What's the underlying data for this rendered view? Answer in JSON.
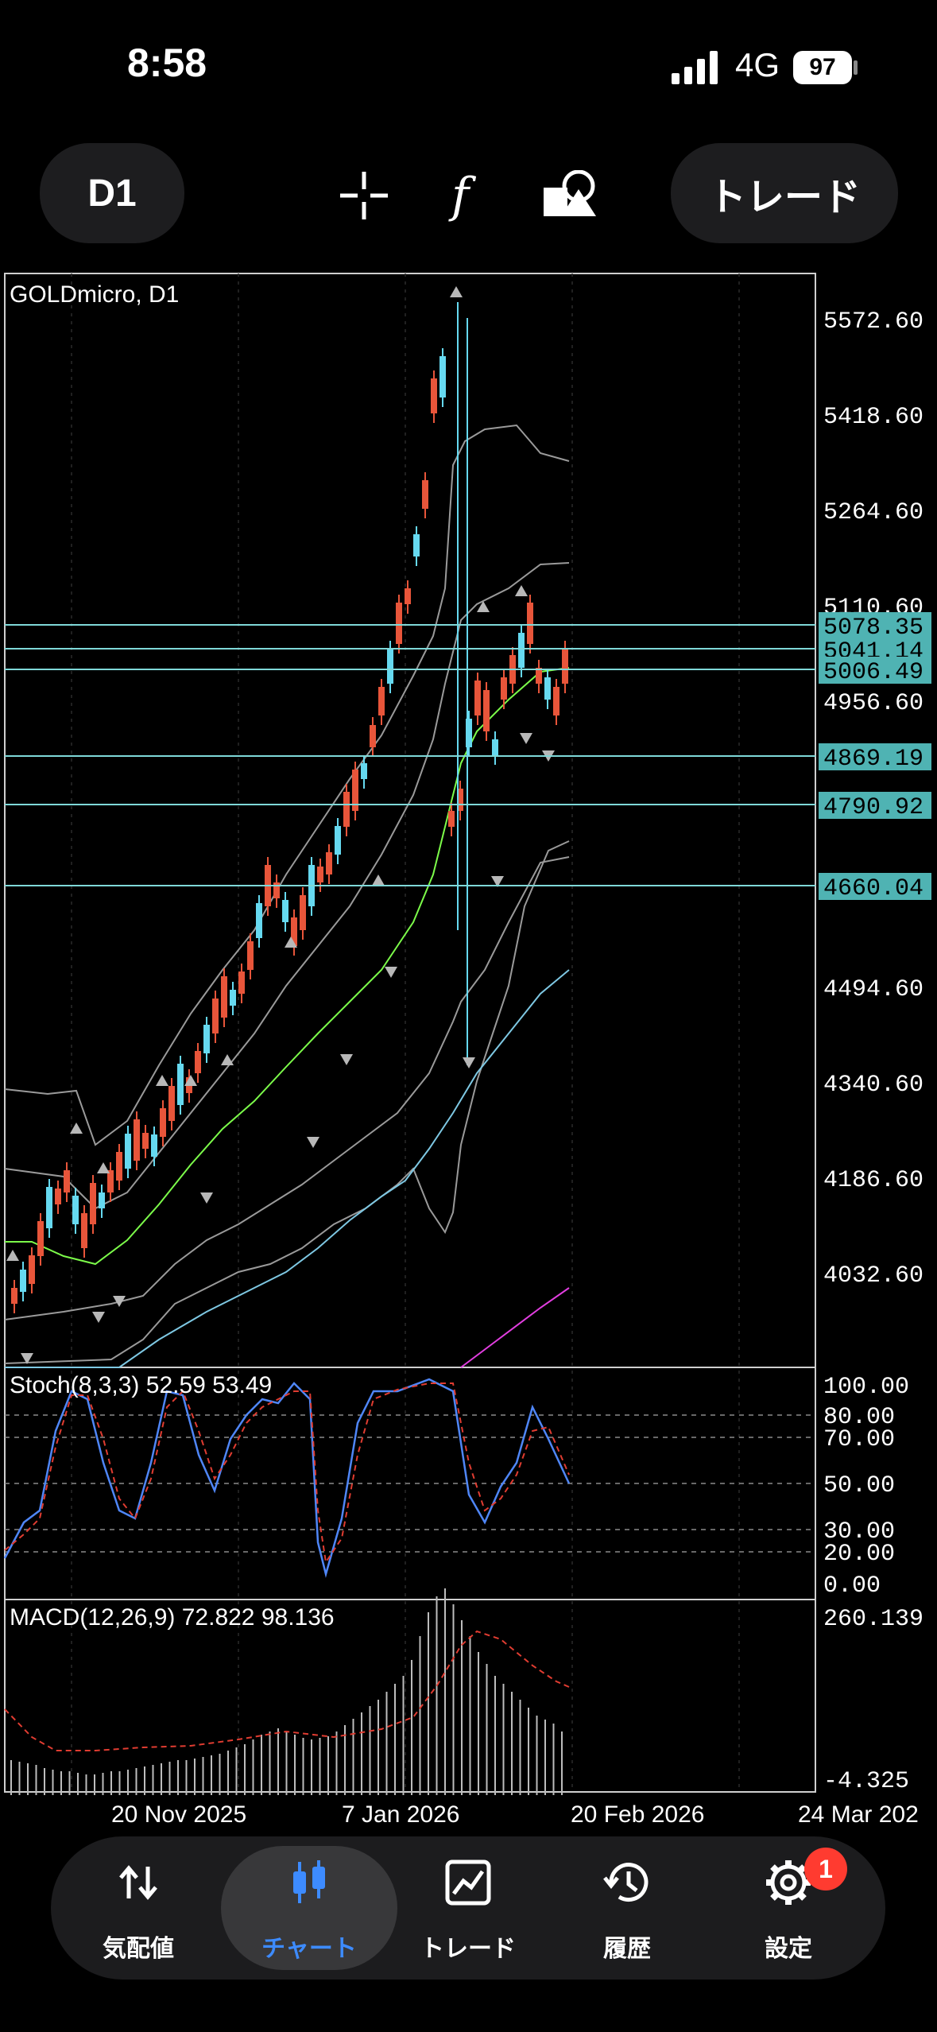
{
  "status": {
    "time": "8:58",
    "network": "4G",
    "battery": "97"
  },
  "toolbar": {
    "timeframe": "D1",
    "trade_button": "トレード"
  },
  "chart": {
    "symbol_label": "GOLDmicro, D1",
    "price_axis": [
      "5572.60",
      "5418.60",
      "5264.60",
      "5110.60",
      "4956.60",
      "4494.60",
      "4340.60",
      "4186.60",
      "4032.60"
    ],
    "price_lines": [
      "5078.35",
      "5041.14",
      "5006.49",
      "4869.19",
      "4790.92",
      "4660.04"
    ],
    "stoch_label": "Stoch(8,3,3) 52.59 53.49",
    "stoch_axis": [
      "100.00",
      "80.00",
      "70.00",
      "50.00",
      "30.00",
      "20.00",
      "0.00"
    ],
    "macd_label": "MACD(12,26,9) 72.822 98.136",
    "macd_max": "260.139",
    "macd_min": "-4.325",
    "dates": [
      "20 Nov 2025",
      "7 Jan 2026",
      "20 Feb 2026",
      "24 Mar 202"
    ]
  },
  "nav": {
    "items": [
      {
        "label": "気配値"
      },
      {
        "label": "チャート"
      },
      {
        "label": "トレード"
      },
      {
        "label": "履歴"
      },
      {
        "label": "設定"
      }
    ],
    "settings_badge": "1"
  }
}
